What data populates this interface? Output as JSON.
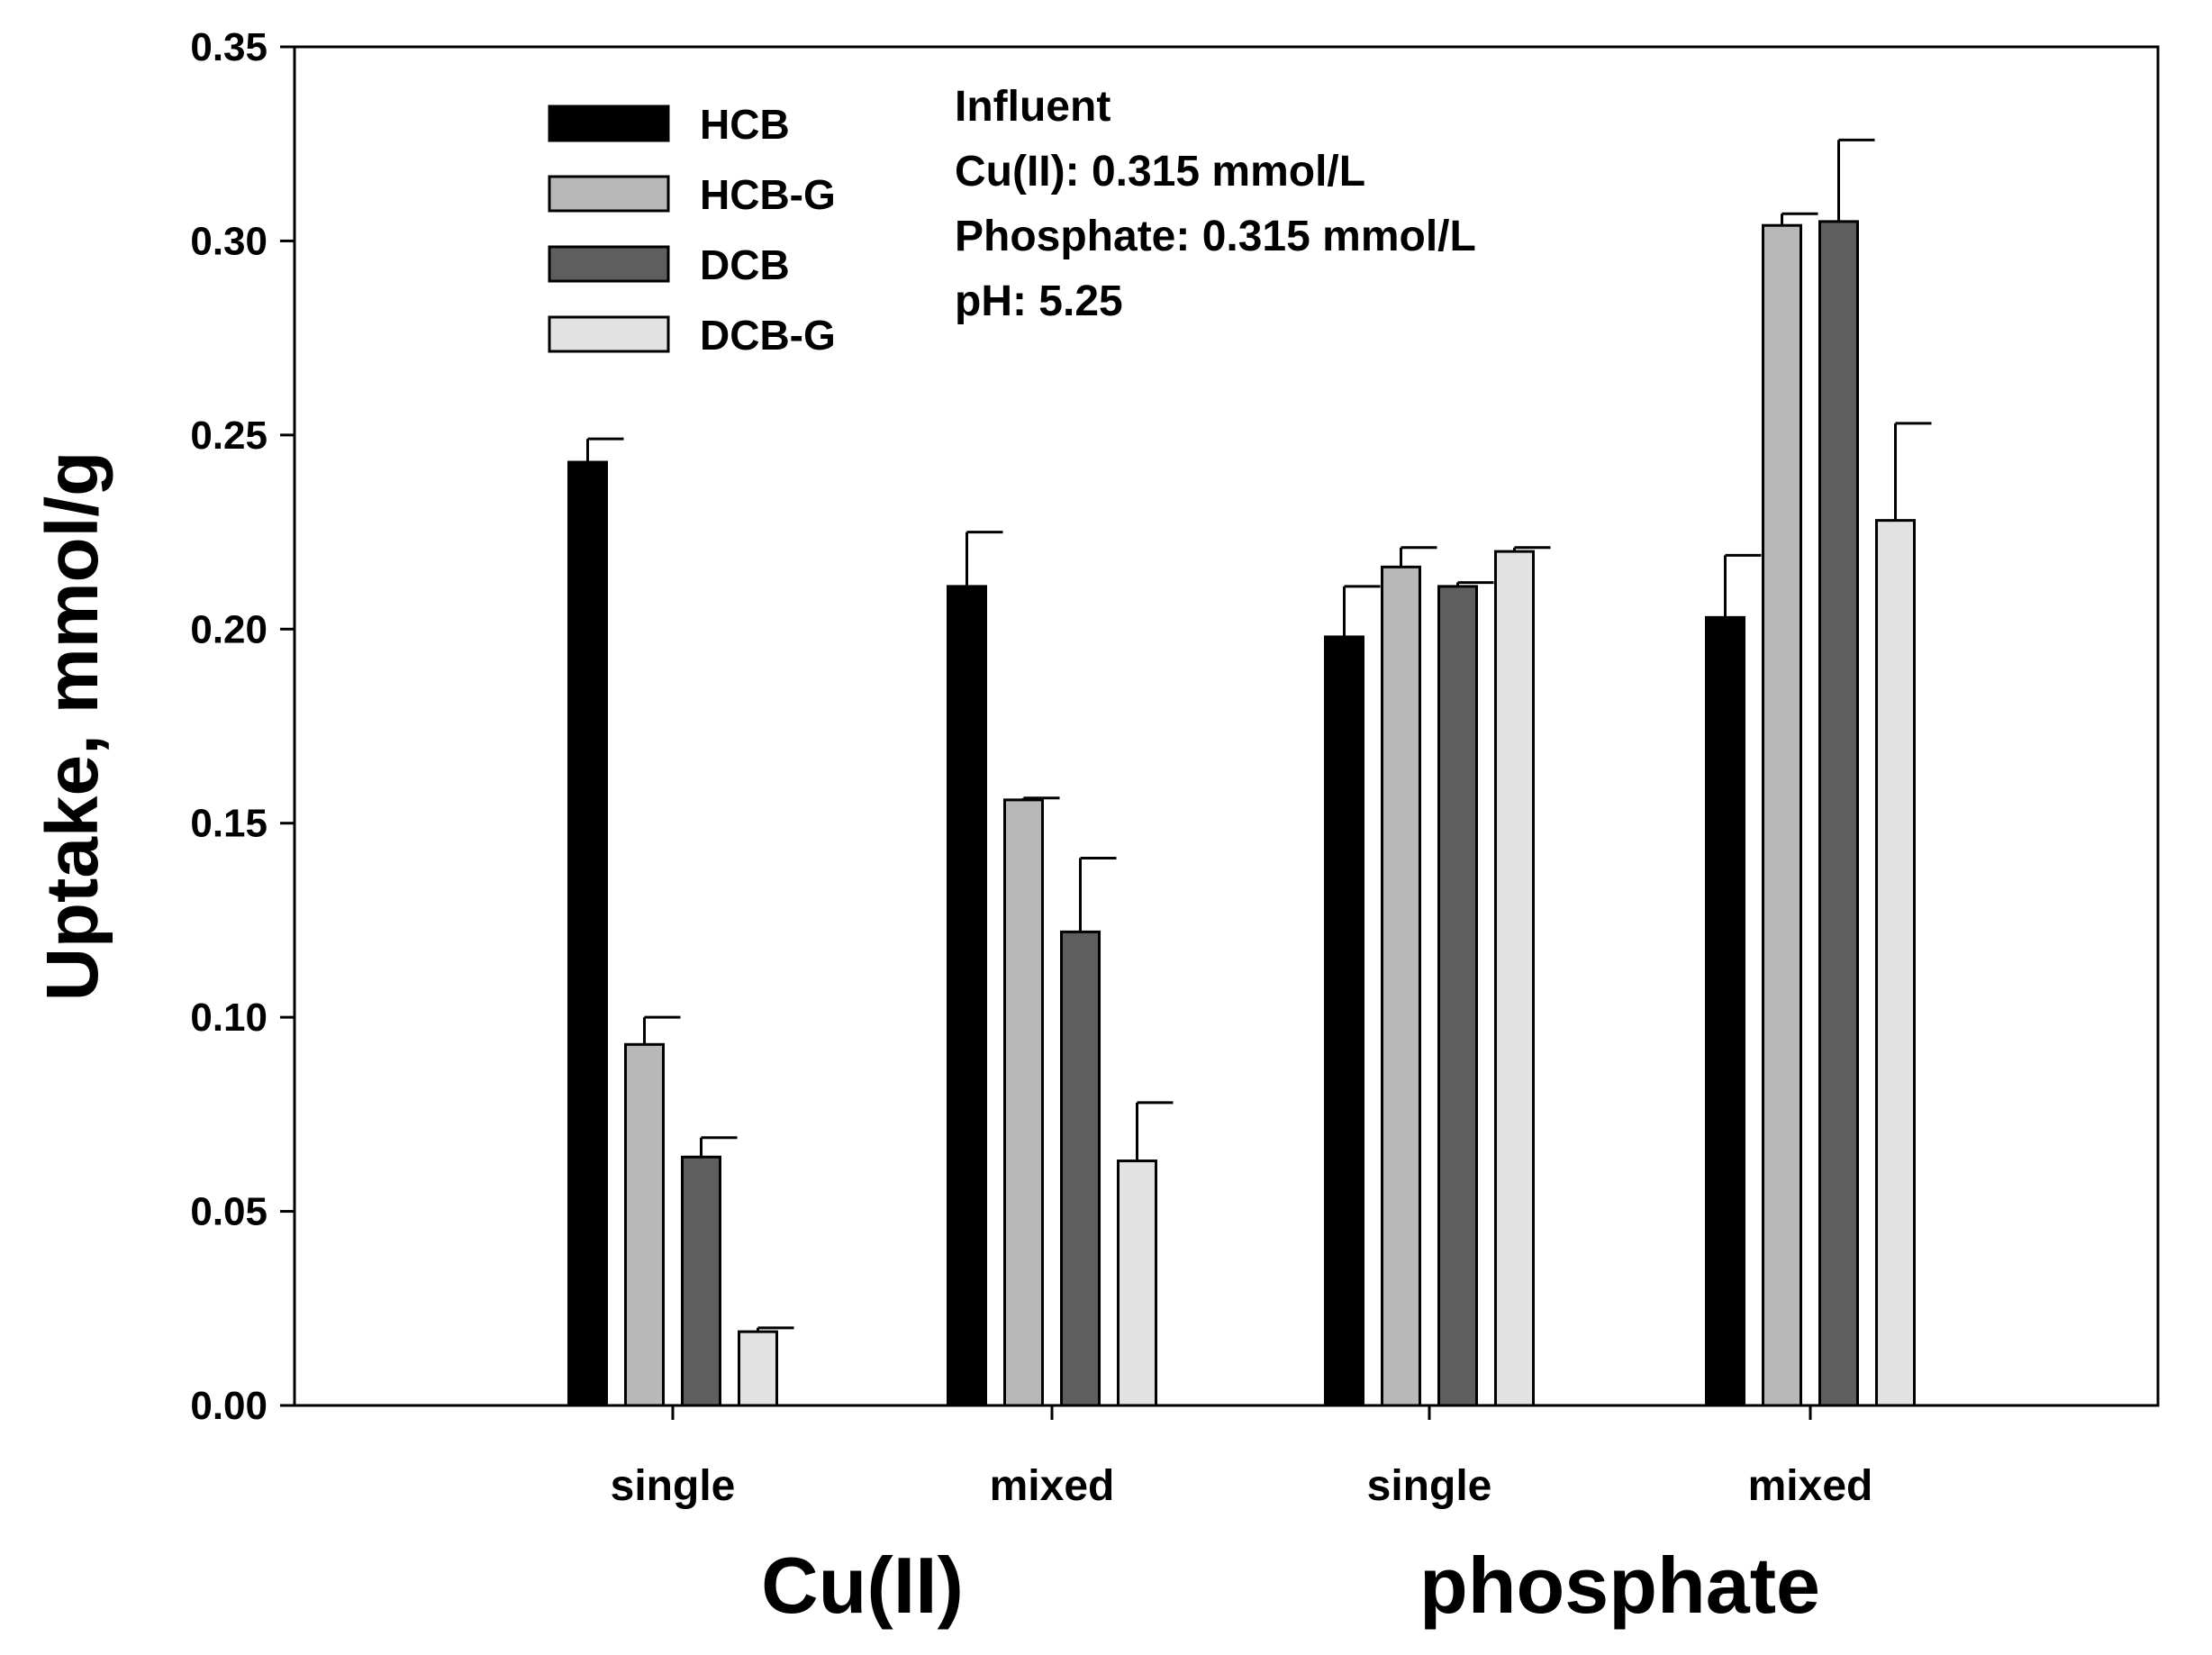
{
  "chart_data": {
    "type": "bar",
    "title": "",
    "xlabel": "",
    "ylabel": "Uptake, mmol/g",
    "ylim": [
      0,
      0.35
    ],
    "yticks": [
      "0.00",
      "0.05",
      "0.10",
      "0.15",
      "0.20",
      "0.25",
      "0.30",
      "0.35"
    ],
    "categories": [
      "single",
      "mixed",
      "single",
      "mixed"
    ],
    "groups": [
      "Cu(II)",
      "phosphate"
    ],
    "legend_position": "top-left",
    "series": [
      {
        "name": "HCB",
        "color": "#000000",
        "values": [
          0.243,
          0.211,
          0.198,
          0.203
        ],
        "errors": [
          0.006,
          0.014,
          0.013,
          0.016
        ]
      },
      {
        "name": "HCB-G",
        "color": "#b8b8b8",
        "values": [
          0.093,
          0.156,
          0.216,
          0.304
        ],
        "errors": [
          0.007,
          0.0005,
          0.005,
          0.003
        ]
      },
      {
        "name": "DCB",
        "color": "#5e5e5e",
        "values": [
          0.064,
          0.122,
          0.211,
          0.305
        ],
        "errors": [
          0.005,
          0.019,
          0.001,
          0.021
        ]
      },
      {
        "name": "DCB-G",
        "color": "#e2e2e2",
        "values": [
          0.019,
          0.063,
          0.22,
          0.228
        ],
        "errors": [
          0.001,
          0.015,
          0.001,
          0.025
        ]
      }
    ],
    "annotation": [
      "Influent",
      "Cu(II): 0.315 mmol/L",
      "Phosphate: 0.315 mmol/L",
      "pH: 5.25"
    ]
  }
}
